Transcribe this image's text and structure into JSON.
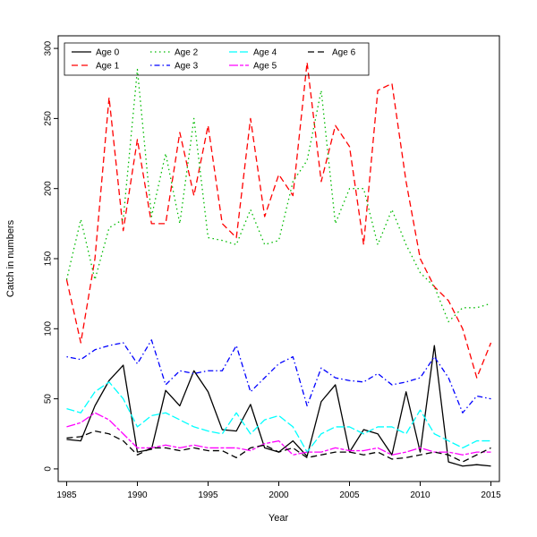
{
  "figure": {
    "background": "#FFFFFF",
    "frame_color": "#000000"
  },
  "chart_data": {
    "type": "line",
    "title": "",
    "xlabel": "Year",
    "ylabel": "Catch in numbers",
    "xlim": [
      1985,
      2015
    ],
    "ylim": [
      0,
      300
    ],
    "x_ticks": [
      1985,
      1990,
      1995,
      2000,
      2005,
      2010,
      2015
    ],
    "y_ticks": [
      0,
      50,
      100,
      150,
      200,
      250,
      300
    ],
    "grid": "off",
    "legend_position": "top-left",
    "legend_ncol": 4,
    "x": [
      1985,
      1986,
      1987,
      1988,
      1989,
      1990,
      1991,
      1992,
      1993,
      1994,
      1995,
      1996,
      1997,
      1998,
      1999,
      2000,
      2001,
      2002,
      2003,
      2004,
      2005,
      2006,
      2007,
      2008,
      2009,
      2010,
      2011,
      2012,
      2013,
      2014,
      2015
    ],
    "series": [
      {
        "name": "Age 0",
        "color": "#000000",
        "linetype": "solid",
        "dash": "",
        "values": [
          21,
          20,
          45,
          63,
          74,
          12,
          14,
          56,
          45,
          70,
          55,
          28,
          27,
          46,
          15,
          12,
          20,
          9,
          48,
          60,
          12,
          28,
          25,
          10,
          55,
          12,
          88,
          5,
          2,
          3,
          2
        ]
      },
      {
        "name": "Age 1",
        "color": "#FF0000",
        "linetype": "dashed",
        "dash": "7,4",
        "values": [
          135,
          90,
          150,
          265,
          170,
          235,
          175,
          175,
          240,
          195,
          245,
          175,
          165,
          250,
          180,
          210,
          195,
          290,
          205,
          245,
          230,
          160,
          270,
          275,
          205,
          150,
          130,
          120,
          100,
          65,
          90
        ]
      },
      {
        "name": "Age 2",
        "color": "#00BB00",
        "linetype": "dotted",
        "dash": "1.5,3.5",
        "values": [
          135,
          178,
          135,
          172,
          178,
          285,
          180,
          225,
          175,
          250,
          165,
          163,
          160,
          185,
          160,
          163,
          205,
          220,
          270,
          175,
          200,
          200,
          160,
          185,
          160,
          140,
          130,
          105,
          115,
          115,
          118
        ]
      },
      {
        "name": "Age 3",
        "color": "#0000FF",
        "linetype": "dotdash",
        "dash": "1.5,3,6,3",
        "values": [
          80,
          78,
          85,
          88,
          90,
          75,
          92,
          60,
          70,
          68,
          70,
          70,
          88,
          55,
          65,
          75,
          80,
          45,
          72,
          65,
          63,
          62,
          68,
          60,
          62,
          65,
          80,
          65,
          40,
          52,
          50
        ]
      },
      {
        "name": "Age 4",
        "color": "#00FFFF",
        "linetype": "longdash",
        "dash": "9,3",
        "values": [
          43,
          40,
          55,
          62,
          50,
          30,
          38,
          40,
          35,
          30,
          27,
          25,
          40,
          25,
          35,
          38,
          30,
          12,
          25,
          30,
          30,
          25,
          30,
          30,
          25,
          42,
          25,
          20,
          15,
          20,
          20
        ]
      },
      {
        "name": "Age 5",
        "color": "#FF00FF",
        "linetype": "twodash",
        "dash": "10,2,4,2",
        "values": [
          30,
          33,
          40,
          35,
          25,
          15,
          15,
          17,
          15,
          17,
          15,
          15,
          15,
          13,
          18,
          20,
          10,
          12,
          12,
          15,
          13,
          13,
          15,
          10,
          12,
          15,
          12,
          12,
          10,
          12,
          12
        ]
      },
      {
        "name": "Age 6",
        "color": "#000000",
        "linetype": "dashed",
        "dash": "7,4",
        "values": [
          22,
          23,
          27,
          25,
          20,
          10,
          15,
          15,
          13,
          15,
          13,
          13,
          8,
          15,
          17,
          12,
          15,
          8,
          10,
          12,
          12,
          10,
          12,
          7,
          8,
          10,
          12,
          10,
          5,
          10,
          15
        ]
      }
    ]
  }
}
